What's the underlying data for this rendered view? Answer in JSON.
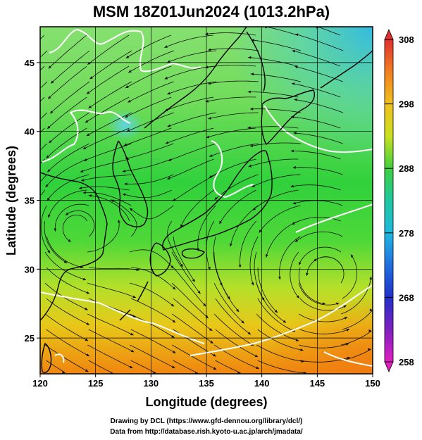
{
  "title": "MSM 18Z01Jun2024 (1013.2hPa)",
  "xlabel": "Longitude (degrees)",
  "ylabel": "Latitude  (degrees)",
  "x_ticks": [
    "120",
    "125",
    "130",
    "135",
    "140",
    "145",
    "150"
  ],
  "y_ticks": [
    "25",
    "30",
    "35",
    "40",
    "45"
  ],
  "colorbar_ticks": [
    "308",
    "298",
    "288",
    "278",
    "268",
    "258"
  ],
  "credits": {
    "line1": "Drawing by DCL (https://www.gfd-dennou.org/library/dcl/)",
    "line2": "Data from http://database.rish.kyoto-u.ac.jp/arch/jmadata/"
  },
  "map": {
    "lon_range": [
      120,
      150
    ],
    "lat_range": [
      22.4,
      47.6
    ],
    "grid_lon": [
      120,
      125,
      130,
      135,
      140,
      145,
      150
    ],
    "grid_lat": [
      25,
      30,
      35,
      40,
      45
    ],
    "colorbar_range": [
      258,
      308
    ],
    "cyclone_center_lon": 146,
    "cyclone_center_lat": 29.5,
    "colors": {
      "cold": "#3bc8e0",
      "cool": "#7de37a",
      "mid": "#22d23c",
      "warm": "#e8d820",
      "hot": "#f08a10",
      "coast": "#000000",
      "isotherm": "#ffffff"
    }
  }
}
